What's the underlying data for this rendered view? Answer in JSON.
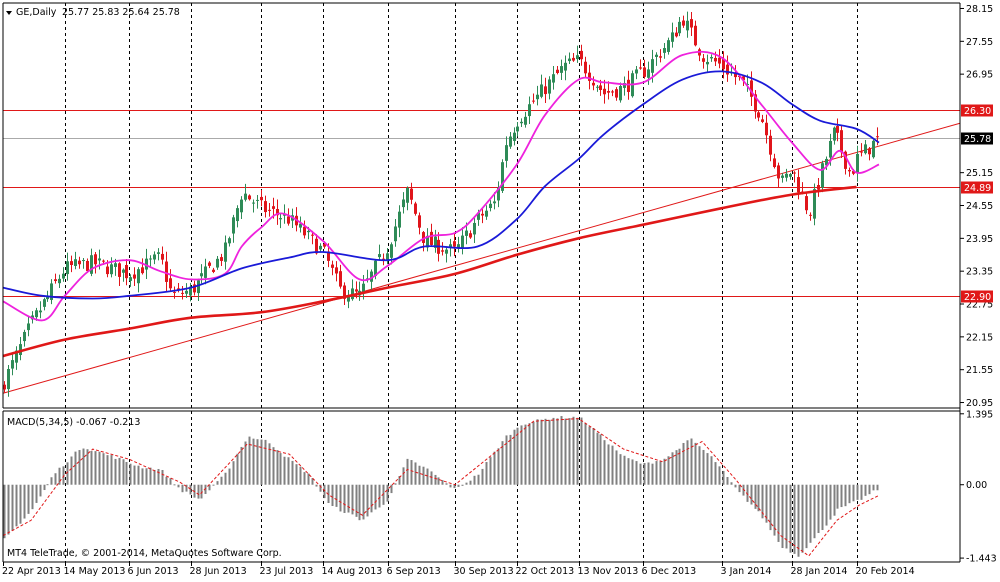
{
  "header": {
    "symbol_label": "GE,Daily",
    "ohlc_text": "25.77 25.83 25.64 25.78",
    "macd_label": "MACD(5,34,5) -0.067 -0.213",
    "copyright": "MT4 TeleTrade, © 2001-2014, MetaQuotes Software Corp."
  },
  "colors": {
    "background": "#ffffff",
    "bull_candle": "#2e8b57",
    "bear_candle": "#e0151b",
    "ma_fast": "#ee22dd",
    "ma_mid": "#1a1ad8",
    "ma_slow": "#e01818",
    "trendline": "#e01818",
    "level_line": "#e01818",
    "price_line": "#aaaaaa",
    "macd_hist": "#808080",
    "macd_signal": "#e01818",
    "grid": "#000000",
    "axis_text": "#000000"
  },
  "chart_data": [
    {
      "type": "candlestick",
      "symbol": "GE",
      "timeframe": "Daily",
      "ylim": [
        20.85,
        28.25
      ],
      "y_ticks": [
        "28.15",
        "27.55",
        "26.95",
        "26.30",
        "25.78",
        "25.15",
        "24.89",
        "24.55",
        "23.95",
        "23.35",
        "22.90",
        "22.75",
        "22.15",
        "21.55",
        "20.95"
      ],
      "x_ticks": [
        "22 Apr 2013",
        "14 May 2013",
        "6 Jun 2013",
        "28 Jun 2013",
        "23 Jul 2013",
        "14 Aug 2013",
        "6 Sep 2013",
        "30 Sep 2013",
        "22 Oct 2013",
        "13 Nov 2013",
        "6 Dec 2013",
        "3 Jan 2014",
        "28 Jan 2014",
        "20 Feb 2014"
      ],
      "grid": "vertical-dashed",
      "levels": [
        {
          "label": "26.30",
          "value": 26.3
        },
        {
          "label": "24.89",
          "value": 24.89
        },
        {
          "label": "22.90",
          "value": 22.9
        }
      ],
      "current_price": {
        "label": "25.78",
        "value": 25.78
      },
      "trendline": {
        "start": [
          "22 Apr 2013",
          21.12
        ],
        "end": [
          "20 Feb 2014",
          25.52
        ]
      },
      "close_anchors": [
        [
          "22 Apr 2013",
          21.3
        ],
        [
          "2 May 2013",
          22.4
        ],
        [
          "14 May 2013",
          23.4
        ],
        [
          "24 May 2013",
          23.5
        ],
        [
          "6 Jun 2013",
          23.3
        ],
        [
          "17 Jun 2013",
          23.6
        ],
        [
          "21 Jun 2013",
          22.9
        ],
        [
          "28 Jun 2013",
          23.0
        ],
        [
          "10 Jul 2013",
          23.7
        ],
        [
          "16 Jul 2013",
          24.8
        ],
        [
          "23 Jul 2013",
          24.5
        ],
        [
          "2 Aug 2013",
          24.3
        ],
        [
          "14 Aug 2013",
          23.7
        ],
        [
          "20 Aug 2013",
          23.0
        ],
        [
          "27 Aug 2013",
          22.9
        ],
        [
          "6 Sep 2013",
          23.8
        ],
        [
          "13 Sep 2013",
          24.8
        ],
        [
          "19 Sep 2013",
          23.9
        ],
        [
          "30 Sep 2013",
          23.7
        ],
        [
          "8 Oct 2013",
          24.3
        ],
        [
          "14 Oct 2013",
          24.6
        ],
        [
          "18 Oct 2013",
          25.7
        ],
        [
          "22 Oct 2013",
          26.1
        ],
        [
          "1 Nov 2013",
          26.7
        ],
        [
          "8 Nov 2013",
          27.1
        ],
        [
          "13 Nov 2013",
          27.2
        ],
        [
          "22 Nov 2013",
          26.6
        ],
        [
          "29 Nov 2013",
          26.7
        ],
        [
          "6 Dec 2013",
          27.0
        ],
        [
          "16 Dec 2013",
          27.6
        ],
        [
          "20 Dec 2013",
          28.0
        ],
        [
          "27 Dec 2013",
          27.3
        ],
        [
          "3 Jan 2014",
          27.1
        ],
        [
          "10 Jan 2014",
          26.8
        ],
        [
          "17 Jan 2014",
          26.2
        ],
        [
          "24 Jan 2014",
          24.95
        ],
        [
          "28 Jan 2014",
          25.2
        ],
        [
          "3 Feb 2014",
          24.4
        ],
        [
          "7 Feb 2014",
          25.1
        ],
        [
          "12 Feb 2014",
          25.9
        ],
        [
          "18 Feb 2014",
          25.1
        ],
        [
          "20 Feb 2014",
          25.4
        ],
        [
          "28 Feb 2014",
          25.78
        ]
      ],
      "series": [
        {
          "name": "",
          "color": "#ee22dd",
          "points": [
            [
              "22 Apr 2013",
              22.8
            ],
            [
              "6 May 2013",
              22.45
            ],
            [
              "14 May 2013",
              22.9
            ],
            [
              "24 May 2013",
              23.4
            ],
            [
              "6 Jun 2013",
              23.55
            ],
            [
              "17 Jun 2013",
              23.35
            ],
            [
              "28 Jun 2013",
              23.2
            ],
            [
              "10 Jul 2013",
              23.3
            ],
            [
              "16 Jul 2013",
              23.8
            ],
            [
              "23 Jul 2013",
              24.15
            ],
            [
              "31 Jul 2013",
              24.4
            ],
            [
              "14 Aug 2013",
              23.9
            ],
            [
              "27 Aug 2013",
              23.2
            ],
            [
              "6 Sep 2013",
              23.45
            ],
            [
              "19 Sep 2013",
              23.95
            ],
            [
              "30 Sep 2013",
              24.05
            ],
            [
              "8 Oct 2013",
              24.4
            ],
            [
              "22 Oct 2013",
              25.3
            ],
            [
              "1 Nov 2013",
              26.2
            ],
            [
              "13 Nov 2013",
              26.85
            ],
            [
              "22 Nov 2013",
              26.8
            ],
            [
              "6 Dec 2013",
              26.8
            ],
            [
              "20 Dec 2013",
              27.3
            ],
            [
              "3 Jan 2014",
              27.25
            ],
            [
              "17 Jan 2014",
              26.4
            ],
            [
              "28 Jan 2014",
              25.7
            ],
            [
              "7 Feb 2014",
              25.2
            ],
            [
              "14 Feb 2014",
              25.55
            ],
            [
              "20 Feb 2014",
              25.15
            ],
            [
              "28 Feb 2014",
              25.3
            ]
          ]
        },
        {
          "name": "",
          "color": "#1a1ad8",
          "points": [
            [
              "22 Apr 2013",
              23.05
            ],
            [
              "6 May 2013",
              22.9
            ],
            [
              "24 May 2013",
              22.85
            ],
            [
              "6 Jun 2013",
              22.9
            ],
            [
              "28 Jun 2013",
              23.05
            ],
            [
              "16 Jul 2013",
              23.4
            ],
            [
              "2 Aug 2013",
              23.6
            ],
            [
              "14 Aug 2013",
              23.7
            ],
            [
              "6 Sep 2013",
              23.55
            ],
            [
              "19 Sep 2013",
              23.8
            ],
            [
              "8 Oct 2013",
              23.8
            ],
            [
              "22 Oct 2013",
              24.3
            ],
            [
              "1 Nov 2013",
              24.9
            ],
            [
              "13 Nov 2013",
              25.4
            ],
            [
              "22 Nov 2013",
              25.85
            ],
            [
              "6 Dec 2013",
              26.4
            ],
            [
              "20 Dec 2013",
              26.85
            ],
            [
              "3 Jan 2014",
              27.0
            ],
            [
              "17 Jan 2014",
              26.8
            ],
            [
              "28 Jan 2014",
              26.4
            ],
            [
              "7 Feb 2014",
              26.1
            ],
            [
              "20 Feb 2014",
              25.95
            ],
            [
              "28 Feb 2014",
              25.7
            ]
          ]
        },
        {
          "name": "",
          "color": "#e01818",
          "points": [
            [
              "22 Apr 2013",
              21.8
            ],
            [
              "14 May 2013",
              22.1
            ],
            [
              "6 Jun 2013",
              22.3
            ],
            [
              "28 Jun 2013",
              22.5
            ],
            [
              "23 Jul 2013",
              22.6
            ],
            [
              "14 Aug 2013",
              22.8
            ],
            [
              "6 Sep 2013",
              23.05
            ],
            [
              "30 Sep 2013",
              23.3
            ],
            [
              "22 Oct 2013",
              23.65
            ],
            [
              "13 Nov 2013",
              23.95
            ],
            [
              "6 Dec 2013",
              24.2
            ],
            [
              "3 Jan 2014",
              24.5
            ],
            [
              "28 Jan 2014",
              24.75
            ],
            [
              "20 Feb 2014",
              24.89
            ]
          ]
        }
      ]
    },
    {
      "type": "bar",
      "name": "MACD(5,34,5)",
      "values_text": "-0.067 -0.213",
      "ylim": [
        -1.52,
        1.45
      ],
      "y_ticks": [
        "1.395",
        "0.00",
        "-1.443"
      ],
      "hist_anchors": [
        [
          "22 Apr 2013",
          -1.1
        ],
        [
          "2 May 2013",
          -0.5
        ],
        [
          "10 May 2013",
          0.2
        ],
        [
          "20 May 2013",
          0.75
        ],
        [
          "31 May 2013",
          0.55
        ],
        [
          "10 Jun 2013",
          0.35
        ],
        [
          "17 Jun 2013",
          0.3
        ],
        [
          "24 Jun 2013",
          -0.1
        ],
        [
          "1 Jul 2013",
          -0.3
        ],
        [
          "10 Jul 2013",
          0.2
        ],
        [
          "18 Jul 2013",
          0.95
        ],
        [
          "25 Jul 2013",
          0.85
        ],
        [
          "2 Aug 2013",
          0.5
        ],
        [
          "9 Aug 2013",
          0.2
        ],
        [
          "16 Aug 2013",
          -0.4
        ],
        [
          "28 Aug 2013",
          -0.7
        ],
        [
          "6 Sep 2013",
          -0.3
        ],
        [
          "13 Sep 2013",
          0.5
        ],
        [
          "20 Sep 2013",
          0.3
        ],
        [
          "30 Sep 2013",
          -0.1
        ],
        [
          "8 Oct 2013",
          0.2
        ],
        [
          "18 Oct 2013",
          0.95
        ],
        [
          "24 Oct 2013",
          1.2
        ],
        [
          "4 Nov 2013",
          1.32
        ],
        [
          "13 Nov 2013",
          1.33
        ],
        [
          "20 Nov 2013",
          1.0
        ],
        [
          "29 Nov 2013",
          0.55
        ],
        [
          "6 Dec 2013",
          0.4
        ],
        [
          "13 Dec 2013",
          0.5
        ],
        [
          "23 Dec 2013",
          0.9
        ],
        [
          "31 Dec 2013",
          0.5
        ],
        [
          "8 Jan 2014",
          -0.1
        ],
        [
          "17 Jan 2014",
          -0.6
        ],
        [
          "24 Jan 2014",
          -1.2
        ],
        [
          "30 Jan 2014",
          -1.4
        ],
        [
          "5 Feb 2014",
          -1.05
        ],
        [
          "13 Feb 2014",
          -0.5
        ],
        [
          "21 Feb 2014",
          -0.3
        ],
        [
          "28 Feb 2014",
          -0.07
        ]
      ],
      "signal_anchors": [
        [
          "22 Apr 2013",
          -1.0
        ],
        [
          "2 May 2013",
          -0.7
        ],
        [
          "14 May 2013",
          0.2
        ],
        [
          "24 May 2013",
          0.7
        ],
        [
          "6 Jun 2013",
          0.5
        ],
        [
          "24 Jun 2013",
          0.05
        ],
        [
          "1 Jul 2013",
          -0.2
        ],
        [
          "18 Jul 2013",
          0.8
        ],
        [
          "2 Aug 2013",
          0.6
        ],
        [
          "16 Aug 2013",
          -0.2
        ],
        [
          "28 Aug 2013",
          -0.6
        ],
        [
          "13 Sep 2013",
          0.3
        ],
        [
          "30 Sep 2013",
          0.0
        ],
        [
          "18 Oct 2013",
          0.8
        ],
        [
          "28 Oct 2013",
          1.25
        ],
        [
          "13 Nov 2013",
          1.3
        ],
        [
          "29 Nov 2013",
          0.7
        ],
        [
          "13 Dec 2013",
          0.45
        ],
        [
          "27 Dec 2013",
          0.85
        ],
        [
          "8 Jan 2014",
          0.1
        ],
        [
          "24 Jan 2014",
          -1.0
        ],
        [
          "3 Feb 2014",
          -1.4
        ],
        [
          "13 Feb 2014",
          -0.7
        ],
        [
          "21 Feb 2014",
          -0.4
        ],
        [
          "28 Feb 2014",
          -0.21
        ]
      ]
    }
  ]
}
